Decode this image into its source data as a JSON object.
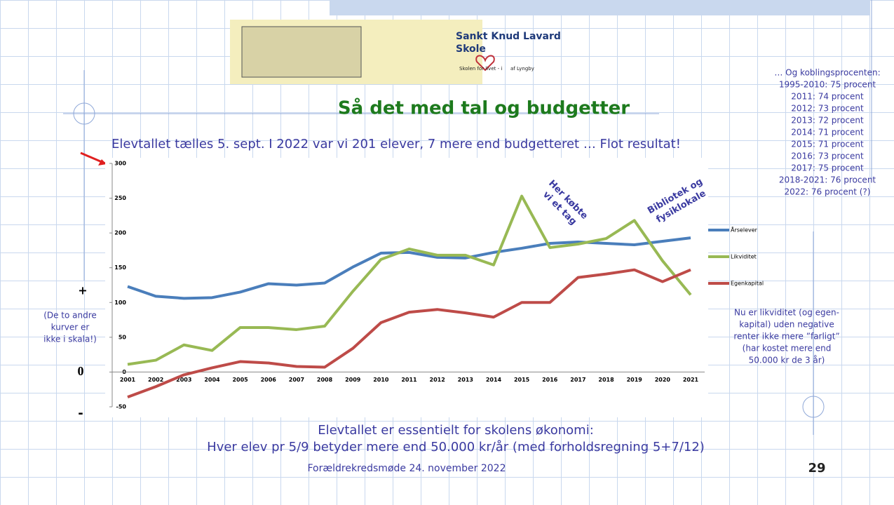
{
  "slide": {
    "logo_title": "Sankt Knud Lavard",
    "logo_subtitle": "Skole",
    "logo_tagline_1": "Skolen for livet - i",
    "logo_tagline_2": "af Lyngby",
    "title": "Så det med tal og budgetter",
    "subtitle": "Elevtallet tælles 5. sept. I 2022 var vi 201 elever, 7 mere end budgetteret … Flot resultat!",
    "side_list": [
      "… Og koblingsprocenten:",
      "1995-2010: 75 procent",
      "2011: 74 procent",
      "2012: 73 procent",
      "2013: 72 procent",
      "2014: 71 procent",
      "2015: 71 procent",
      "2016: 73 procent",
      "2017: 75 procent",
      "2018-2021: 76 procent",
      "2022: 76 procent (?)"
    ],
    "plus": "+",
    "scale_note": [
      "(De to andre",
      "kurver er",
      "ikke i skala!)"
    ],
    "zero": "0",
    "minus": "-",
    "right_note": [
      "Nu er likviditet (og egen-",
      "kapital) uden negative",
      "renter ikke mere ”farligt”",
      "(har kostet mere end",
      "50.000 kr de 3 år)"
    ],
    "bottom_text": [
      "Elevtallet er essentielt for skolens økonomi:",
      "Hver elev pr 5/9 betyder mere end 50.000 kr/år (med forholdsregning 5+7/12)"
    ],
    "footer": "Forældrekredsmøde 24. november 2022",
    "page_number": "29"
  },
  "chart_data": {
    "type": "line",
    "categories": [
      "2001",
      "2002",
      "2003",
      "2004",
      "2005",
      "2006",
      "2007",
      "2008",
      "2009",
      "2010",
      "2011",
      "2012",
      "2013",
      "2014",
      "2015",
      "2016",
      "2017",
      "2018",
      "2019",
      "2020",
      "2021"
    ],
    "series": [
      {
        "name": "Årselever",
        "color": "#4a7ebb",
        "values": [
          123,
          109,
          106,
          107,
          115,
          127,
          125,
          128,
          151,
          171,
          172,
          165,
          164,
          172,
          178,
          185,
          187,
          185,
          183,
          188,
          193
        ]
      },
      {
        "name": "Likviditet",
        "color": "#98b954",
        "values": [
          11,
          17,
          39,
          31,
          64,
          64,
          61,
          66,
          116,
          162,
          177,
          168,
          168,
          154,
          253,
          179,
          184,
          192,
          218,
          160,
          111
        ]
      },
      {
        "name": "Egenkapital",
        "color": "#be4b48",
        "values": [
          -36,
          -21,
          -4,
          6,
          15,
          13,
          8,
          7,
          34,
          71,
          86,
          90,
          85,
          79,
          100,
          100,
          136,
          141,
          147,
          130,
          147
        ]
      }
    ],
    "ylim": [
      -50,
      300
    ],
    "yticks": [
      -50,
      0,
      50,
      100,
      150,
      200,
      250,
      300
    ],
    "annotations": [
      [
        "Her købte",
        "vi et tag"
      ],
      [
        "Bibliotek og",
        "fysiklokale"
      ]
    ],
    "legend": "right",
    "grid": false
  }
}
